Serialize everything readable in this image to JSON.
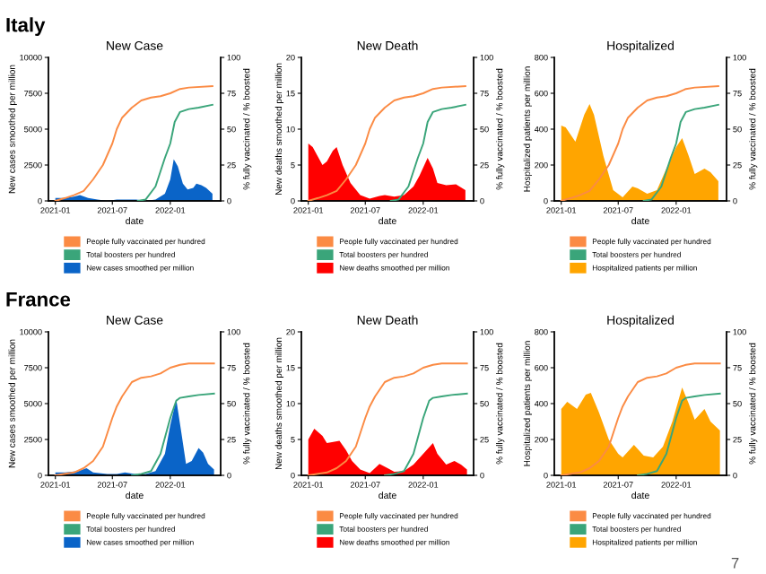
{
  "chart_data": [
    {
      "type": "area",
      "title": "New Case",
      "xlabel": "date",
      "ylabel": "New cases smoothed per million",
      "y2label": "% fully vaccinated / % boosted",
      "annotations": [
        "Italy"
      ],
      "legend": "bottom",
      "xlim": [
        "2020-12-10",
        "2022-06-10"
      ],
      "xticks": [
        "2021-01",
        "2021-07",
        "2022-01"
      ],
      "ylim": [
        0,
        10000
      ],
      "yticks": [
        0,
        2500,
        5000,
        7500,
        10000
      ],
      "y2lim": [
        0,
        100
      ],
      "y2ticks": [
        0,
        25,
        50,
        75,
        100
      ],
      "series": [
        {
          "name": "New cases smoothed per million",
          "color": "#0a64c8",
          "x": [
            "2021-01-01",
            "2021-02-01",
            "2021-03-01",
            "2021-03-20",
            "2021-04-15",
            "2021-05-15",
            "2021-06-15",
            "2021-07-15",
            "2021-08-15",
            "2021-09-15",
            "2021-10-15",
            "2021-11-15",
            "2021-12-15",
            "2022-01-01",
            "2022-01-12",
            "2022-01-25",
            "2022-02-10",
            "2022-02-25",
            "2022-03-15",
            "2022-03-25",
            "2022-04-10",
            "2022-04-25",
            "2022-05-15"
          ],
          "values": [
            200,
            200,
            300,
            400,
            200,
            100,
            0,
            100,
            100,
            100,
            0,
            100,
            500,
            1500,
            2900,
            2400,
            1200,
            800,
            900,
            1200,
            1100,
            900,
            500
          ]
        },
        {
          "name": "People fully vaccinated per hundred",
          "type": "line",
          "axis": "y2",
          "color": "#fb8b44",
          "x": [
            "2021-01-01",
            "2021-02-01",
            "2021-03-01",
            "2021-04-01",
            "2021-05-01",
            "2021-06-01",
            "2021-07-01",
            "2021-07-15",
            "2021-08-01",
            "2021-09-01",
            "2021-10-01",
            "2021-11-01",
            "2021-12-01",
            "2022-01-01",
            "2022-02-01",
            "2022-03-01",
            "2022-05-15"
          ],
          "values": [
            0,
            2,
            4,
            7,
            15,
            25,
            40,
            50,
            58,
            65,
            70,
            72,
            73,
            75,
            78,
            79,
            80
          ]
        },
        {
          "name": "Total boosters per hundred",
          "type": "line",
          "axis": "y2",
          "color": "#3aa57a",
          "x": [
            "2021-09-20",
            "2021-10-15",
            "2021-11-15",
            "2021-12-15",
            "2022-01-01",
            "2022-01-15",
            "2022-02-01",
            "2022-03-01",
            "2022-04-01",
            "2022-05-15"
          ],
          "values": [
            0,
            1,
            10,
            30,
            40,
            55,
            62,
            64,
            65,
            67
          ]
        }
      ]
    },
    {
      "type": "area",
      "title": "New Death",
      "xlabel": "date",
      "ylabel": "New deaths smoothed per million",
      "y2label": "% fully vaccinated / % boosted",
      "legend": "bottom",
      "xlim": [
        "2020-12-10",
        "2022-06-10"
      ],
      "xticks": [
        "2021-01",
        "2021-07",
        "2022-01"
      ],
      "ylim": [
        0,
        20
      ],
      "yticks": [
        0,
        5,
        10,
        15,
        20
      ],
      "y2lim": [
        0,
        100
      ],
      "y2ticks": [
        0,
        25,
        50,
        75,
        100
      ],
      "series": [
        {
          "name": "New deaths smoothed per million",
          "color": "#ff0000",
          "x": [
            "2021-01-01",
            "2021-01-15",
            "2021-02-15",
            "2021-03-01",
            "2021-03-20",
            "2021-04-01",
            "2021-04-20",
            "2021-05-15",
            "2021-06-15",
            "2021-07-15",
            "2021-08-15",
            "2021-09-01",
            "2021-10-01",
            "2021-11-01",
            "2021-12-01",
            "2021-12-20",
            "2022-01-15",
            "2022-02-01",
            "2022-02-15",
            "2022-03-15",
            "2022-04-15",
            "2022-05-15"
          ],
          "values": [
            8,
            7.5,
            5,
            5.5,
            7,
            7.5,
            5,
            2.5,
            0.8,
            0.3,
            0.7,
            0.8,
            0.6,
            0.8,
            2,
            3.5,
            6,
            4.5,
            2.5,
            2.2,
            2.3,
            1.5
          ]
        },
        {
          "name": "People fully vaccinated per hundred",
          "type": "line",
          "axis": "y2",
          "color": "#fb8b44",
          "x": [
            "2021-01-01",
            "2021-02-01",
            "2021-03-01",
            "2021-04-01",
            "2021-05-01",
            "2021-06-01",
            "2021-07-01",
            "2021-07-15",
            "2021-08-01",
            "2021-09-01",
            "2021-10-01",
            "2021-11-01",
            "2021-12-01",
            "2022-01-01",
            "2022-02-01",
            "2022-03-01",
            "2022-05-15"
          ],
          "values": [
            0,
            2,
            4,
            7,
            15,
            25,
            40,
            50,
            58,
            65,
            70,
            72,
            73,
            75,
            78,
            79,
            80
          ]
        },
        {
          "name": "Total boosters per hundred",
          "type": "line",
          "axis": "y2",
          "color": "#3aa57a",
          "x": [
            "2021-09-20",
            "2021-10-15",
            "2021-11-15",
            "2021-12-15",
            "2022-01-01",
            "2022-01-15",
            "2022-02-01",
            "2022-03-01",
            "2022-04-01",
            "2022-05-15"
          ],
          "values": [
            0,
            1,
            10,
            30,
            40,
            55,
            62,
            64,
            65,
            67
          ]
        }
      ]
    },
    {
      "type": "area",
      "title": "Hospitalized",
      "xlabel": "date",
      "ylabel": "Hospitalized patients per million",
      "y2label": "% fully vaccinated / % boosted",
      "legend": "bottom",
      "xlim": [
        "2020-12-10",
        "2022-06-10"
      ],
      "xticks": [
        "2021-01",
        "2021-07",
        "2022-01"
      ],
      "ylim": [
        0,
        800
      ],
      "yticks": [
        0,
        200,
        400,
        600,
        800
      ],
      "y2lim": [
        0,
        100
      ],
      "y2ticks": [
        0,
        25,
        50,
        75,
        100
      ],
      "series": [
        {
          "name": "Hospitalized patients per million",
          "color": "#ffa500",
          "x": [
            "2021-01-01",
            "2021-01-15",
            "2021-02-15",
            "2021-03-15",
            "2021-04-01",
            "2021-04-15",
            "2021-05-15",
            "2021-06-15",
            "2021-07-15",
            "2021-08-15",
            "2021-09-01",
            "2021-10-01",
            "2021-11-01",
            "2021-12-01",
            "2022-01-01",
            "2022-01-20",
            "2022-02-10",
            "2022-03-01",
            "2022-04-01",
            "2022-04-20",
            "2022-05-15"
          ],
          "values": [
            420,
            410,
            330,
            480,
            540,
            480,
            250,
            60,
            20,
            80,
            70,
            40,
            60,
            180,
            300,
            350,
            250,
            150,
            180,
            160,
            110
          ]
        },
        {
          "name": "People fully vaccinated per hundred",
          "type": "line",
          "axis": "y2",
          "color": "#fb8b44",
          "x": [
            "2021-01-01",
            "2021-02-01",
            "2021-03-01",
            "2021-04-01",
            "2021-05-01",
            "2021-06-01",
            "2021-07-01",
            "2021-07-15",
            "2021-08-01",
            "2021-09-01",
            "2021-10-01",
            "2021-11-01",
            "2021-12-01",
            "2022-01-01",
            "2022-02-01",
            "2022-03-01",
            "2022-05-15"
          ],
          "values": [
            0,
            2,
            4,
            7,
            15,
            25,
            40,
            50,
            58,
            65,
            70,
            72,
            73,
            75,
            78,
            79,
            80
          ]
        },
        {
          "name": "Total boosters per hundred",
          "type": "line",
          "axis": "y2",
          "color": "#3aa57a",
          "x": [
            "2021-09-20",
            "2021-10-15",
            "2021-11-15",
            "2021-12-15",
            "2022-01-01",
            "2022-01-15",
            "2022-02-01",
            "2022-03-01",
            "2022-04-01",
            "2022-05-15"
          ],
          "values": [
            0,
            1,
            10,
            30,
            40,
            55,
            62,
            64,
            65,
            67
          ]
        }
      ]
    },
    {
      "type": "area",
      "title": "New Case",
      "xlabel": "date",
      "ylabel": "New cases smoothed per million",
      "y2label": "% fully vaccinated / % boosted",
      "annotations": [
        "France"
      ],
      "legend": "bottom",
      "xlim": [
        "2020-12-10",
        "2022-06-10"
      ],
      "xticks": [
        "2021-01",
        "2021-07",
        "2022-01"
      ],
      "ylim": [
        0,
        10000
      ],
      "yticks": [
        0,
        2500,
        5000,
        7500,
        10000
      ],
      "y2lim": [
        0,
        100
      ],
      "y2ticks": [
        0,
        25,
        50,
        75,
        100
      ],
      "series": [
        {
          "name": "New cases smoothed per million",
          "color": "#0a64c8",
          "x": [
            "2021-01-01",
            "2021-02-01",
            "2021-03-15",
            "2021-04-10",
            "2021-05-01",
            "2021-06-15",
            "2021-07-15",
            "2021-08-10",
            "2021-09-10",
            "2021-10-15",
            "2021-11-15",
            "2021-12-15",
            "2022-01-01",
            "2022-01-20",
            "2022-02-05",
            "2022-02-20",
            "2022-03-10",
            "2022-04-01",
            "2022-04-15",
            "2022-05-01",
            "2022-05-20"
          ],
          "values": [
            200,
            200,
            300,
            500,
            200,
            100,
            100,
            200,
            100,
            100,
            300,
            1500,
            3500,
            5300,
            3000,
            800,
            1000,
            1900,
            1600,
            800,
            400
          ]
        },
        {
          "name": "People fully vaccinated per hundred",
          "type": "line",
          "axis": "y2",
          "color": "#fb8b44",
          "x": [
            "2021-01-01",
            "2021-03-01",
            "2021-04-01",
            "2021-05-01",
            "2021-06-01",
            "2021-07-01",
            "2021-07-15",
            "2021-08-01",
            "2021-09-01",
            "2021-10-01",
            "2021-11-01",
            "2021-12-01",
            "2022-01-01",
            "2022-02-01",
            "2022-03-01",
            "2022-05-20"
          ],
          "values": [
            0,
            2,
            5,
            10,
            20,
            40,
            48,
            55,
            65,
            68,
            69,
            71,
            75,
            77,
            78,
            78
          ]
        },
        {
          "name": "Total boosters per hundred",
          "type": "line",
          "axis": "y2",
          "color": "#3aa57a",
          "x": [
            "2021-09-01",
            "2021-10-01",
            "2021-11-01",
            "2021-12-01",
            "2022-01-01",
            "2022-01-20",
            "2022-02-01",
            "2022-03-01",
            "2022-04-01",
            "2022-05-20"
          ],
          "values": [
            0,
            1,
            3,
            15,
            40,
            52,
            54,
            55,
            56,
            57
          ]
        }
      ]
    },
    {
      "type": "area",
      "title": "New Death",
      "xlabel": "date",
      "ylabel": "New deaths smoothed per million",
      "y2label": "% fully vaccinated / % boosted",
      "legend": "bottom",
      "xlim": [
        "2020-12-10",
        "2022-06-10"
      ],
      "xticks": [
        "2021-01",
        "2021-07",
        "2022-01"
      ],
      "ylim": [
        0,
        20
      ],
      "yticks": [
        0,
        5,
        10,
        15,
        20
      ],
      "y2lim": [
        0,
        100
      ],
      "y2ticks": [
        0,
        25,
        50,
        75,
        100
      ],
      "series": [
        {
          "name": "New deaths smoothed per million",
          "color": "#ff0000",
          "x": [
            "2021-01-01",
            "2021-01-20",
            "2021-02-15",
            "2021-03-01",
            "2021-04-10",
            "2021-05-01",
            "2021-05-20",
            "2021-06-15",
            "2021-07-15",
            "2021-08-15",
            "2021-09-10",
            "2021-10-01",
            "2021-11-01",
            "2021-12-01",
            "2022-01-01",
            "2022-02-01",
            "2022-02-15",
            "2022-03-15",
            "2022-04-10",
            "2022-05-01",
            "2022-05-20"
          ],
          "values": [
            5,
            6.5,
            5.5,
            4.5,
            4.8,
            3.5,
            2,
            0.8,
            0.3,
            1.6,
            1,
            0.5,
            0.6,
            1.5,
            3,
            4.5,
            3,
            1.5,
            2,
            1.5,
            0.8
          ]
        },
        {
          "name": "People fully vaccinated per hundred",
          "type": "line",
          "axis": "y2",
          "color": "#fb8b44",
          "x": [
            "2021-01-01",
            "2021-03-01",
            "2021-04-01",
            "2021-05-01",
            "2021-06-01",
            "2021-07-01",
            "2021-07-15",
            "2021-08-01",
            "2021-09-01",
            "2021-10-01",
            "2021-11-01",
            "2021-12-01",
            "2022-01-01",
            "2022-02-01",
            "2022-03-01",
            "2022-05-20"
          ],
          "values": [
            0,
            2,
            5,
            10,
            20,
            40,
            48,
            55,
            65,
            68,
            69,
            71,
            75,
            77,
            78,
            78
          ]
        },
        {
          "name": "Total boosters per hundred",
          "type": "line",
          "axis": "y2",
          "color": "#3aa57a",
          "x": [
            "2021-09-01",
            "2021-10-01",
            "2021-11-01",
            "2021-12-01",
            "2022-01-01",
            "2022-01-20",
            "2022-02-01",
            "2022-03-01",
            "2022-04-01",
            "2022-05-20"
          ],
          "values": [
            0,
            1,
            3,
            15,
            40,
            52,
            54,
            55,
            56,
            57
          ]
        }
      ]
    },
    {
      "type": "area",
      "title": "Hospitalized",
      "xlabel": "date",
      "ylabel": "Hospitalized patients per million",
      "y2label": "% fully vaccinated / % boosted",
      "annotations": [
        "7"
      ],
      "legend": "bottom",
      "xlim": [
        "2020-12-10",
        "2022-06-10"
      ],
      "xticks": [
        "2021-01",
        "2021-07",
        "2022-01"
      ],
      "ylim": [
        0,
        800
      ],
      "yticks": [
        0,
        200,
        400,
        600,
        800
      ],
      "y2lim": [
        0,
        100
      ],
      "y2ticks": [
        0,
        25,
        50,
        75,
        100
      ],
      "series": [
        {
          "name": "Hospitalized patients per million",
          "color": "#ffa500",
          "x": [
            "2021-01-01",
            "2021-01-20",
            "2021-02-20",
            "2021-03-20",
            "2021-04-05",
            "2021-05-01",
            "2021-06-01",
            "2021-07-01",
            "2021-07-15",
            "2021-08-20",
            "2021-09-20",
            "2021-10-20",
            "2021-11-20",
            "2021-12-20",
            "2022-01-20",
            "2022-02-10",
            "2022-03-01",
            "2022-04-01",
            "2022-04-20",
            "2022-05-20"
          ],
          "values": [
            370,
            410,
            370,
            450,
            460,
            350,
            200,
            120,
            100,
            170,
            110,
            100,
            160,
            300,
            490,
            400,
            310,
            370,
            300,
            250
          ]
        },
        {
          "name": "People fully vaccinated per hundred",
          "type": "line",
          "axis": "y2",
          "color": "#fb8b44",
          "x": [
            "2021-01-01",
            "2021-03-01",
            "2021-04-01",
            "2021-05-01",
            "2021-06-01",
            "2021-07-01",
            "2021-07-15",
            "2021-08-01",
            "2021-09-01",
            "2021-10-01",
            "2021-11-01",
            "2021-12-01",
            "2022-01-01",
            "2022-02-01",
            "2022-03-01",
            "2022-05-20"
          ],
          "values": [
            0,
            2,
            5,
            10,
            20,
            40,
            48,
            55,
            65,
            68,
            69,
            71,
            75,
            77,
            78,
            78
          ]
        },
        {
          "name": "Total boosters per hundred",
          "type": "line",
          "axis": "y2",
          "color": "#3aa57a",
          "x": [
            "2021-09-01",
            "2021-10-01",
            "2021-11-01",
            "2021-12-01",
            "2022-01-01",
            "2022-01-20",
            "2022-02-01",
            "2022-03-01",
            "2022-04-01",
            "2022-05-20"
          ],
          "values": [
            0,
            1,
            3,
            15,
            40,
            52,
            54,
            55,
            56,
            57
          ]
        }
      ]
    }
  ]
}
